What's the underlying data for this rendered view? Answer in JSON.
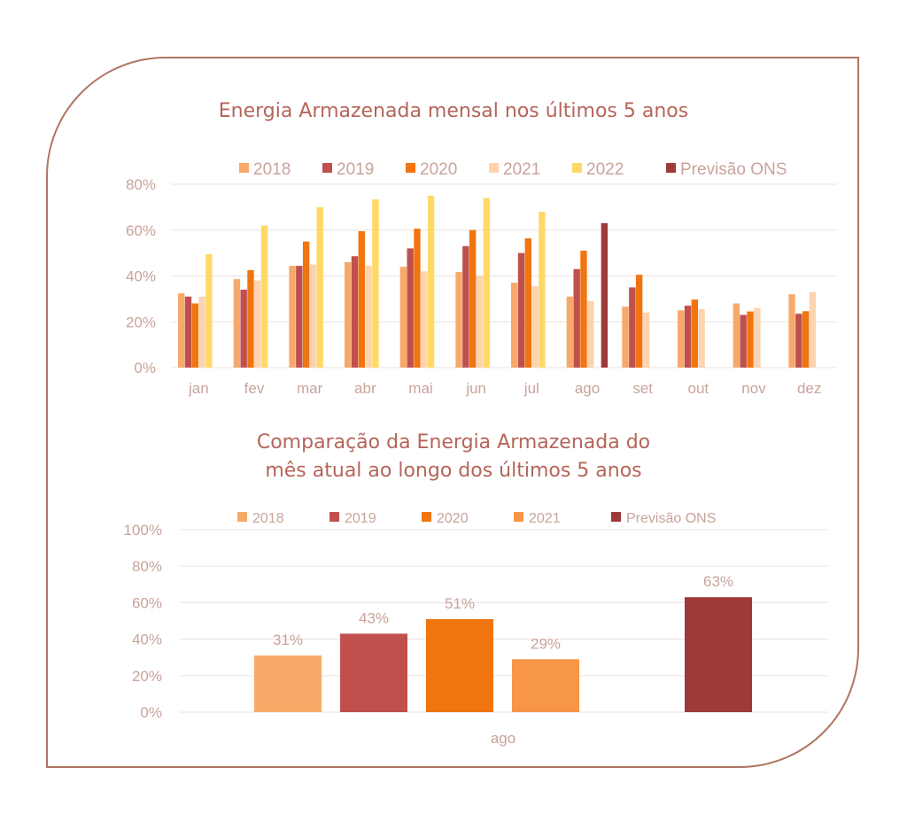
{
  "colors": {
    "frame": "#b07561",
    "title": "#b5655a",
    "axis_text": "#c9a39a",
    "grid": "#f2e6e4"
  },
  "chart_data": [
    {
      "type": "bar",
      "title": "Energia Armazenada mensal nos últimos 5 anos",
      "xlabel": "",
      "ylabel": "",
      "ylim": [
        0,
        80
      ],
      "yticks": [
        "0%",
        "20%",
        "40%",
        "60%",
        "80%"
      ],
      "ytick_values": [
        0,
        20,
        40,
        60,
        80
      ],
      "grid": true,
      "legend": "top",
      "categories": [
        "jan",
        "fev",
        "mar",
        "abr",
        "mai",
        "jun",
        "jul",
        "ago",
        "set",
        "out",
        "nov",
        "dez"
      ],
      "series": [
        {
          "name": "2018",
          "color": "#f6a96b",
          "values": [
            32.4,
            38.6,
            44.4,
            46,
            44,
            41.7,
            37,
            31,
            26.6,
            25,
            28,
            32
          ]
        },
        {
          "name": "2019",
          "color": "#c0504d",
          "values": [
            31,
            34,
            44.4,
            48.6,
            52,
            53,
            50,
            43,
            35,
            27,
            23,
            23.5
          ]
        },
        {
          "name": "2020",
          "color": "#f07510",
          "values": [
            28,
            42.5,
            55,
            59.5,
            60.6,
            60,
            56.4,
            51,
            40.5,
            29.7,
            24.5,
            24.6
          ]
        },
        {
          "name": "2021",
          "color": "#fdd3b0",
          "values": [
            31,
            38,
            45,
            44.4,
            42,
            40,
            35.5,
            29,
            24,
            25.5,
            26,
            33
          ]
        },
        {
          "name": "2022",
          "color": "#ffd966",
          "values": [
            49.5,
            62,
            70,
            73.4,
            75,
            74,
            68,
            null,
            null,
            null,
            null,
            null
          ]
        },
        {
          "name": "Previsão ONS",
          "color": "#9e3a3a",
          "values": [
            null,
            null,
            null,
            null,
            null,
            null,
            null,
            63,
            null,
            null,
            null,
            null
          ]
        }
      ]
    },
    {
      "type": "bar",
      "title": "Comparação da Energia Armazenada do mês atual ao longo dos últimos 5 anos",
      "title_lines": [
        "Comparação da Energia Armazenada do",
        "mês atual ao longo dos últimos 5 anos"
      ],
      "xlabel": "",
      "ylabel": "",
      "ylim": [
        0,
        100
      ],
      "yticks": [
        "0%",
        "20%",
        "40%",
        "60%",
        "80%",
        "100%"
      ],
      "ytick_values": [
        0,
        20,
        40,
        60,
        80,
        100
      ],
      "grid": true,
      "legend": "top",
      "categories": [
        "ago"
      ],
      "series": [
        {
          "name": "2018",
          "color": "#f7a968",
          "values": [
            31
          ],
          "label": "31%"
        },
        {
          "name": "2019",
          "color": "#c0504d",
          "values": [
            43
          ],
          "label": "43%"
        },
        {
          "name": "2020",
          "color": "#f07510",
          "values": [
            51
          ],
          "label": "51%"
        },
        {
          "name": "2021",
          "color": "#f79646",
          "values": [
            29
          ],
          "label": "29%"
        },
        {
          "name": "Previsão ONS",
          "color": "#9e3a3a",
          "values": [
            63
          ],
          "label": "63%"
        }
      ]
    }
  ]
}
